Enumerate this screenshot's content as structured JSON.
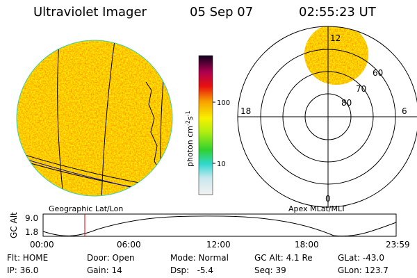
{
  "header": {
    "title": "Ultraviolet Imager",
    "date": "05 Sep 07",
    "time": "02:55:23 UT"
  },
  "colorbar": {
    "unit": {
      "base": "photon cm",
      "exp1": "-2",
      "mid": "s",
      "exp2": "-1"
    },
    "ticks": [
      "100",
      "10"
    ]
  },
  "polar": {
    "mlt_labels": [
      "12",
      "18",
      "6",
      "0"
    ],
    "mlat_labels": [
      "60",
      "70",
      "80"
    ]
  },
  "panel_labels": [
    "Geographic Lat/Lon",
    "Apex MLat/MLT"
  ],
  "altitude": {
    "axis_label": "GC Alt",
    "yticks": [
      "9.0",
      "1.8"
    ],
    "xticks": [
      "00:00",
      "06:00",
      "12:00",
      "18:00",
      "23:59"
    ]
  },
  "status": [
    [
      "Flt: HOME",
      "Door: Open",
      "Mode: Normal",
      "GC Alt: 4.1 Re",
      "GLat: -43.0"
    ],
    [
      "IP: 36.0",
      "Gain: 14",
      "Dsp:   -5.4",
      "Seq: 39",
      "GLon: 123.7"
    ]
  ]
}
